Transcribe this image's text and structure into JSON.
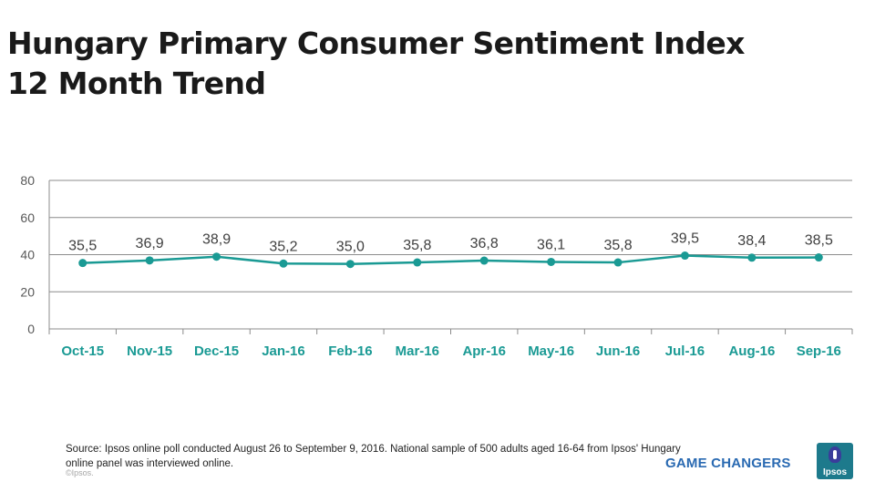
{
  "title": {
    "line1": "Hungary Primary Consumer Sentiment Index",
    "line2": "12 Month Trend"
  },
  "chart_data": {
    "type": "line",
    "categories": [
      "Oct-15",
      "Nov-15",
      "Dec-15",
      "Jan-16",
      "Feb-16",
      "Mar-16",
      "Apr-16",
      "May-16",
      "Jun-16",
      "Jul-16",
      "Aug-16",
      "Sep-16"
    ],
    "values": [
      35.5,
      36.9,
      38.9,
      35.2,
      35.0,
      35.8,
      36.8,
      36.1,
      35.8,
      39.5,
      38.4,
      38.5
    ],
    "data_labels": [
      "35,5",
      "36,9",
      "38,9",
      "35,2",
      "35,0",
      "35,8",
      "36,8",
      "36,1",
      "35,8",
      "39,5",
      "38,4",
      "38,5"
    ],
    "yticks": [
      0,
      20,
      40,
      60,
      80
    ],
    "ylim": [
      0,
      80
    ],
    "xlabel": "",
    "ylabel": "",
    "grid": true,
    "line_color": "#1a9a94"
  },
  "footer": {
    "source": "Source: Ipsos online poll conducted August 26 to September 9, 2016. National sample of 500 adults aged 16-64 from Ipsos' Hungary online panel was interviewed online.",
    "copyright": "©Ipsos.",
    "tagline": "GAME CHANGERS",
    "logo_text": "Ipsos"
  }
}
